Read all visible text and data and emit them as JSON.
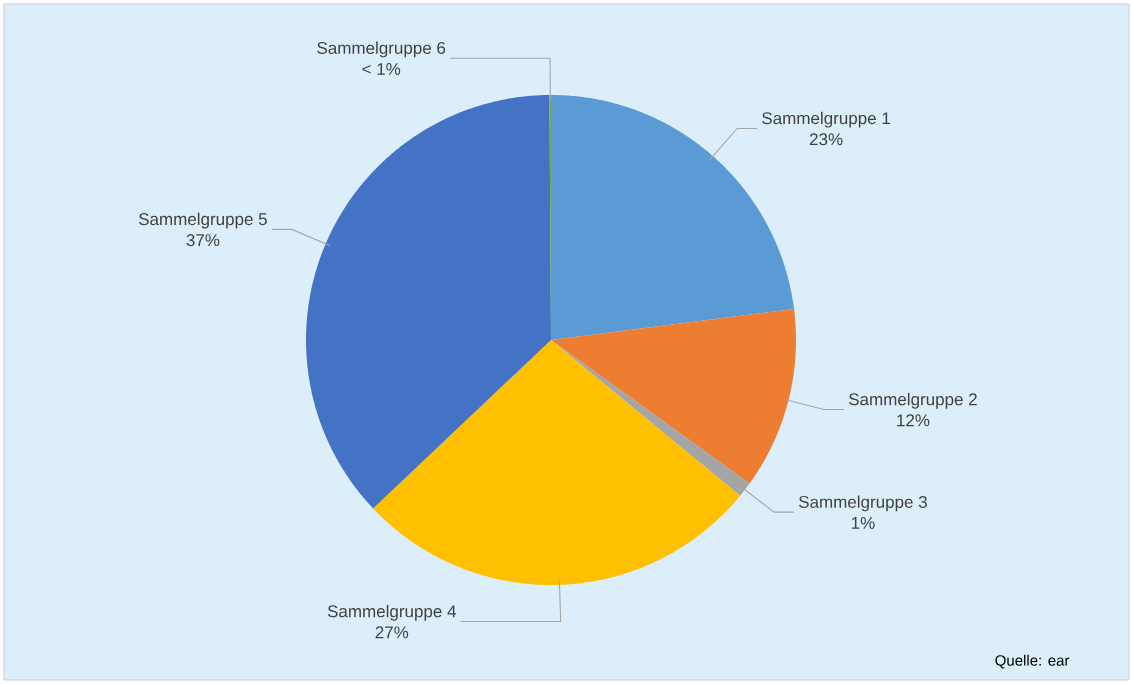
{
  "chart_data": {
    "type": "pie",
    "categories": [
      "Sammelgruppe 1",
      "Sammelgruppe 2",
      "Sammelgruppe 3",
      "Sammelgruppe 4",
      "Sammelgruppe 5",
      "Sammelgruppe 6"
    ],
    "values": [
      23,
      12,
      1,
      27,
      37,
      0.1
    ],
    "value_labels": [
      "23%",
      "12%",
      "1%",
      "27%",
      "37%",
      "< 1%"
    ],
    "colors": [
      "#5b9bd5",
      "#ed7d31",
      "#a5a5a5",
      "#ffc000",
      "#4472c4",
      "#70ad47"
    ],
    "annotations": [
      "Quelle: ear"
    ]
  }
}
